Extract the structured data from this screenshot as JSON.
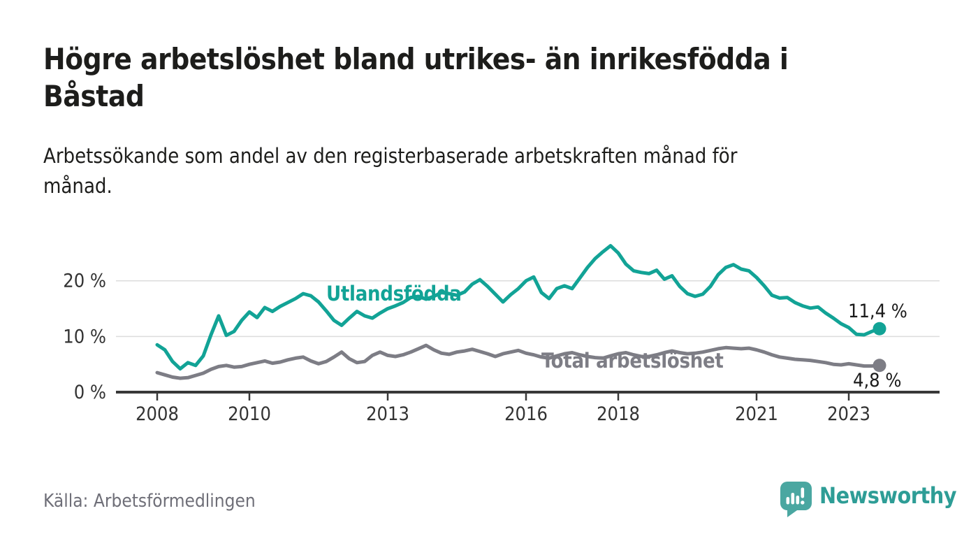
{
  "title": {
    "text": "Högre arbetslöshet bland utrikes- än inrikesfödda i Båstad",
    "lines": [
      "Högre arbetslöshet bland utrikes- än inrikesfödda i",
      "Båstad"
    ]
  },
  "subtitle": {
    "text": "Arbetssökande som andel av den registerbaserade arbetskraften månad för månad.",
    "lines": [
      "Arbetssökande som andel av den registerbaserade arbetskraften månad för",
      "månad."
    ]
  },
  "source": "Källa: Arbetsförmedlingen",
  "branding": {
    "name": "Newsworthy",
    "icon": "speech-bubble-bar-chart-icon",
    "icon_color": "#4aa7a1",
    "text_color": "#2e9d96"
  },
  "colors": {
    "utlandsfodda": "#12a396",
    "total": "#7d7d85",
    "axis": "#383838",
    "tick_text": "#333333",
    "grid": "#dcdcdc",
    "value_text": "#1a1a1a",
    "source_text": "#6f6f78"
  },
  "chart_data": {
    "type": "line",
    "title": "Högre arbetslöshet bland utrikes- än inrikesfödda i Båstad",
    "xlabel": "",
    "ylabel": "Arbetssökande som andel av den registerbaserade arbetskraften",
    "unit": "%",
    "grid": "horizontal",
    "legend": "inline-labels",
    "x_axis": {
      "unit": "decimal-year",
      "range": [
        2007.1,
        2024.0
      ],
      "ticks": [
        {
          "value": 2008,
          "label": "2008"
        },
        {
          "value": 2010,
          "label": "2010"
        },
        {
          "value": 2013,
          "label": "2013"
        },
        {
          "value": 2016,
          "label": "2016"
        },
        {
          "value": 2018,
          "label": "2018"
        },
        {
          "value": 2021,
          "label": "2021"
        },
        {
          "value": 2023,
          "label": "2023"
        }
      ]
    },
    "y_axis": {
      "range": [
        0,
        29
      ],
      "ticks": [
        {
          "value": 20,
          "label": "20 %"
        },
        {
          "value": 10,
          "label": "10 %"
        },
        {
          "value": 0,
          "label": "0 %"
        }
      ]
    },
    "sampling_note": "monthly series read from chart at 2-month resolution",
    "x_start": 2008.0,
    "x_step_years": 0.166667,
    "series": [
      {
        "name": "Utlandsfödda",
        "color": "#12a396",
        "end_value": 11.4,
        "end_label": "11,4 %",
        "values": [
          8.5,
          7.6,
          5.5,
          4.2,
          5.3,
          4.8,
          6.5,
          10.3,
          13.7,
          10.2,
          10.9,
          12.9,
          14.4,
          13.4,
          15.2,
          14.5,
          15.4,
          16.1,
          16.8,
          17.7,
          17.3,
          16.2,
          14.6,
          12.9,
          12.0,
          13.3,
          14.5,
          13.7,
          13.3,
          14.2,
          15.0,
          15.5,
          16.1,
          17.0,
          17.2,
          16.7,
          17.2,
          17.9,
          17.7,
          17.4,
          18.0,
          19.4,
          20.2,
          19.0,
          17.6,
          16.2,
          17.5,
          18.6,
          20.0,
          20.7,
          17.9,
          16.8,
          18.6,
          19.1,
          18.6,
          20.5,
          22.4,
          24.0,
          25.2,
          26.3,
          25.0,
          23.0,
          21.8,
          21.5,
          21.3,
          21.9,
          20.3,
          20.9,
          19.0,
          17.7,
          17.2,
          17.6,
          19.0,
          21.1,
          22.4,
          22.9,
          22.1,
          21.8,
          20.6,
          19.1,
          17.4,
          16.9,
          17.0,
          16.1,
          15.5,
          15.1,
          15.3,
          14.2,
          13.3,
          12.3,
          11.6,
          10.4,
          10.3,
          10.9,
          11.4
        ]
      },
      {
        "name": "Total arbetslöshet",
        "color": "#7d7d85",
        "end_value": 4.8,
        "end_label": "4,8 %",
        "values": [
          3.5,
          3.1,
          2.7,
          2.5,
          2.6,
          3.0,
          3.4,
          4.1,
          4.6,
          4.8,
          4.5,
          4.6,
          5.0,
          5.3,
          5.6,
          5.2,
          5.4,
          5.8,
          6.1,
          6.3,
          5.6,
          5.1,
          5.5,
          6.3,
          7.2,
          6.0,
          5.3,
          5.5,
          6.6,
          7.2,
          6.6,
          6.4,
          6.7,
          7.2,
          7.8,
          8.4,
          7.6,
          7.0,
          6.8,
          7.2,
          7.4,
          7.7,
          7.3,
          6.9,
          6.4,
          6.9,
          7.2,
          7.5,
          7.0,
          6.7,
          6.3,
          6.1,
          6.5,
          6.9,
          7.1,
          6.7,
          6.4,
          6.2,
          6.1,
          6.5,
          6.9,
          7.1,
          6.7,
          6.4,
          6.4,
          6.7,
          7.1,
          7.4,
          7.1,
          6.9,
          7.0,
          7.2,
          7.5,
          7.8,
          8.0,
          7.9,
          7.8,
          7.9,
          7.6,
          7.2,
          6.7,
          6.3,
          6.1,
          5.9,
          5.8,
          5.7,
          5.5,
          5.3,
          5.0,
          4.9,
          5.1,
          4.9,
          4.7,
          4.7,
          4.8
        ]
      }
    ]
  }
}
